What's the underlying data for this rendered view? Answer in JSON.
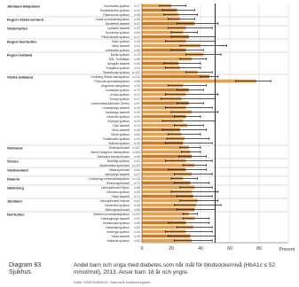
{
  "chart_data": {
    "type": "bar",
    "orientation": "horizontal",
    "title": "",
    "xlabel": "Procent",
    "ylabel": "",
    "xlim": [
      0,
      100
    ],
    "xticks": [
      0,
      20,
      40,
      60,
      80,
      100
    ],
    "xtick_labels": [
      "0",
      "20",
      "40",
      "60",
      "80",
      ""
    ],
    "grid": true,
    "legend": "none",
    "groups": [
      {
        "name": "Jämtland Härjedalen",
        "start": 0
      },
      {
        "name": "Region Västernorrland",
        "start": 3
      },
      {
        "name": "Västerbotten",
        "start": 5
      },
      {
        "name": "Region Norrbotten",
        "start": 8
      },
      {
        "name": "Region Gotland",
        "start": 11
      },
      {
        "name": "Västra Götaland",
        "start": 16
      },
      {
        "name": "Värmland",
        "start": 32
      },
      {
        "name": "Örebro",
        "start": 35
      },
      {
        "name": "Västmanland",
        "start": 37
      },
      {
        "name": "Dalarna",
        "start": 39
      },
      {
        "name": "Gävleborg",
        "start": 41
      },
      {
        "name": "Jämtland",
        "start": 44
      },
      {
        "name": "Norrbotten",
        "start": 47
      }
    ],
    "categories": [
      "Sundsvalls sjukhus",
      "Örnsköldsviks sjukhus",
      "Östersunds sjukhus",
      "Umeå universitetssjukhus",
      "Skellefteå lasarett",
      "Lycksele lasarett",
      "Sunderby sjukhus",
      "Piteå älvdals sjukhus",
      "Kalix sjukhus",
      "Visby lasarett",
      "Uddevalla sjukhus",
      "Borås sjukhus",
      "NÄL Trollhättan",
      "Alingsås lasarett",
      "Kungälvs sjukhus",
      "Skaraborgs sjukhus",
      "Drottning Silvias barnsjukhus",
      "Frölunda specialistsjukhus",
      "Angereds närsjukhus",
      "Karlstads sjukhus",
      "Arvika sjukhus",
      "Torsby sjukhus",
      "Universitetssjukhuset Örebro",
      "Lindesbergs lasarett",
      "Karlskoga lasarett",
      "Västerås sjukhus",
      "Köpings sjukhus",
      "Falu lasarett",
      "Mora lasarett",
      "Gävle sjukhus",
      "Hudiksvalls sjukhus",
      "Bollnäs sjukhus",
      "Södersjukhuset",
      "Astrid Lindgrens barnsjukhus",
      "Sachsska barnsjukhuset",
      "Norrtälje sjukhus",
      "Akademiska sjukhuset",
      "Mälarsjukhuset",
      "Nyköpings lasarett",
      "Linköpings universitetssjukhus",
      "Vrinnevisjukhuset",
      "Länssjukhuset Ryhov",
      "Värnamo sjukhus",
      "Växjö lasarett",
      "Länssjukhuset Kalmar",
      "Västerviks sjukhus",
      "Blekingesjukhuset",
      "Skånes universitetssjukhus",
      "Helsingborgs lasarett",
      "Kristianstad sjukhus",
      "Halmstad sjukhus",
      "Varbergs sjukhus",
      "Ystad lasarett",
      "Hallands sjukhus"
    ],
    "n_labels": [
      "n=77",
      "n=42",
      "n=38",
      "n=95",
      "n=31",
      "n=22",
      "n=84",
      "n=27",
      "n=19",
      "n=24",
      "n=68",
      "n=73",
      "n=88",
      "n=36",
      "n=41",
      "n=102",
      "n=215",
      "n=58",
      "n=33",
      "n=79",
      "n=21",
      "n=17",
      "n=97",
      "n=26",
      "n=29",
      "n=91",
      "n=23",
      "n=74",
      "n=28",
      "n=81",
      "n=34",
      "n=25",
      "n=187",
      "n=203",
      "n=96",
      "n=31",
      "n=142",
      "n=64",
      "n=47",
      "n=118",
      "n=72",
      "n=86",
      "n=39",
      "n=71",
      "n=62",
      "n=35",
      "n=66",
      "n=224",
      "n=97",
      "n=58",
      "n=63",
      "n=44",
      "n=38",
      "n=52"
    ],
    "values": [
      20,
      24,
      25,
      26,
      36,
      30,
      28,
      32,
      30,
      40,
      30,
      42,
      34,
      25,
      26,
      38,
      46,
      78,
      28,
      32,
      30,
      27,
      32,
      30,
      34,
      30,
      28,
      31,
      26,
      27,
      29,
      28,
      32,
      33,
      34,
      30,
      36,
      30,
      34,
      28,
      33,
      36,
      34,
      35,
      38,
      37,
      36,
      32,
      36,
      30,
      35,
      30,
      33,
      34
    ],
    "ci_low": [
      12,
      14,
      15,
      18,
      24,
      18,
      20,
      20,
      16,
      26,
      20,
      30,
      26,
      15,
      16,
      30,
      40,
      64,
      18,
      24,
      16,
      13,
      24,
      16,
      20,
      22,
      14,
      22,
      14,
      18,
      17,
      16,
      26,
      27,
      25,
      16,
      28,
      18,
      22,
      20,
      22,
      26,
      20,
      24,
      26,
      22,
      24,
      28,
      28,
      18,
      24,
      16,
      18,
      22
    ],
    "ci_high": [
      30,
      36,
      38,
      36,
      52,
      48,
      38,
      50,
      50,
      58,
      42,
      54,
      44,
      40,
      40,
      48,
      52,
      88,
      44,
      42,
      52,
      50,
      42,
      48,
      52,
      40,
      50,
      42,
      44,
      40,
      46,
      48,
      40,
      40,
      44,
      48,
      44,
      44,
      48,
      38,
      46,
      48,
      52,
      48,
      52,
      54,
      50,
      38,
      46,
      46,
      48,
      48,
      50,
      48
    ],
    "target_line": 50,
    "colors": {
      "bar": "#e6a04c",
      "bar_dark": "#c97a23",
      "ci": "#1a1a1a",
      "grid": "#d9d9d9"
    }
  },
  "caption": {
    "label": "Diagram 83\nSjukhus",
    "text": "Andel barn och unga med diabetes som når mål för blodsockernivå (HbA1c ≤ 52 mmol/mol), 2013. Avser barn 18 år och yngre.",
    "source": "Källa: SWEDIABKIDS, Nationellt kvalitetsregister."
  }
}
